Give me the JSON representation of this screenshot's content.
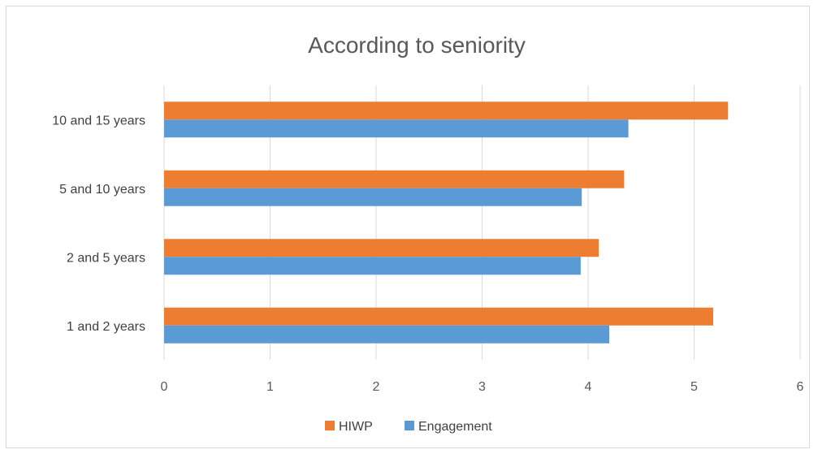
{
  "chart_data": {
    "type": "bar",
    "orientation": "horizontal",
    "title": "According to seniority",
    "categories": [
      "1 and 2 years",
      "2 and 5 years",
      "5 and 10 years",
      "10 and 15 years"
    ],
    "series": [
      {
        "name": "HIWP",
        "values": [
          5.18,
          4.1,
          4.34,
          5.32
        ],
        "color": "#ED7D31"
      },
      {
        "name": "Engagement",
        "values": [
          4.2,
          3.93,
          3.94,
          4.38
        ],
        "color": "#5B9BD5"
      }
    ],
    "x_ticks": [
      "0",
      "1",
      "2",
      "3",
      "4",
      "5",
      "6"
    ],
    "xlim": [
      0,
      6
    ],
    "grid": true,
    "legend": "bottom"
  }
}
